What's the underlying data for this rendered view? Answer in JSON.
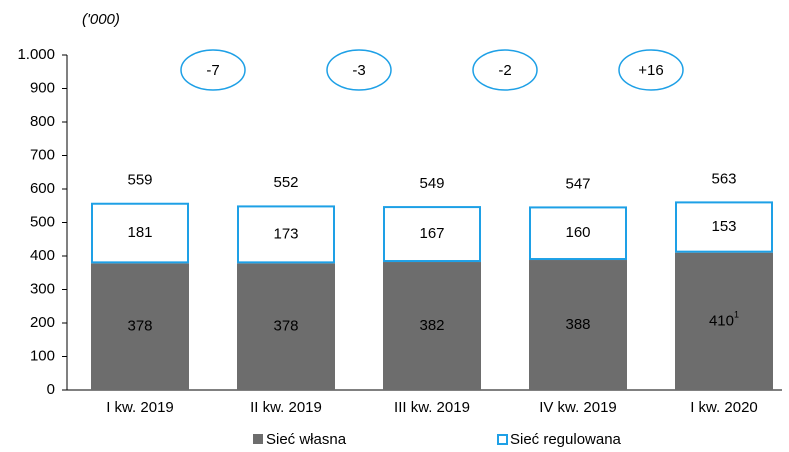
{
  "chart_data": {
    "type": "stacked_bar",
    "unit_label": "('000)",
    "categories": [
      "I kw. 2019",
      "II kw. 2019",
      "III kw. 2019",
      "IV kw. 2019",
      "I kw. 2020"
    ],
    "series": [
      {
        "name": "Sieć własna",
        "color": "#6d6d6d",
        "values": [
          378,
          378,
          382,
          388,
          410
        ],
        "notes": [
          null,
          null,
          null,
          null,
          "1"
        ]
      },
      {
        "name": "Sieć regulowana",
        "color": "#1ea0e6",
        "values": [
          181,
          173,
          167,
          160,
          153
        ]
      }
    ],
    "totals": [
      559,
      552,
      549,
      547,
      563
    ],
    "changes": [
      {
        "value": -7,
        "label": "-7"
      },
      {
        "value": -3,
        "label": "-3"
      },
      {
        "value": -2,
        "label": "-2"
      },
      {
        "value": 16,
        "label": "+16"
      }
    ],
    "ylim": [
      0,
      1000
    ],
    "yticks": [
      0,
      100,
      200,
      300,
      400,
      500,
      600,
      700,
      800,
      900,
      {
        "value": 1000,
        "label": "1.000"
      }
    ]
  }
}
